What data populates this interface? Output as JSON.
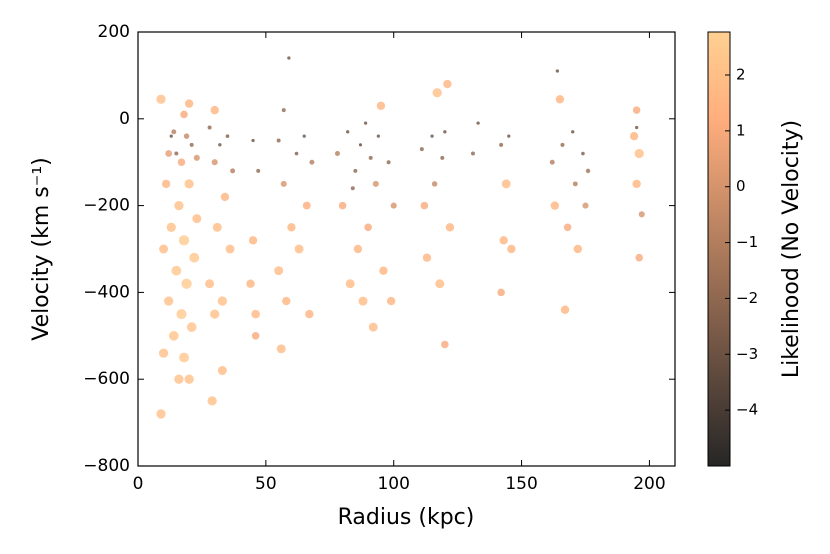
{
  "chart_data": {
    "type": "scatter",
    "xlabel": "Radius (kpc)",
    "ylabel": "Velocity (km s⁻¹)",
    "colorbar_label": "Likelihood (No Velocity)",
    "xlim": [
      0,
      210
    ],
    "ylim": [
      -800,
      200
    ],
    "xticks": [
      0,
      50,
      100,
      150,
      200
    ],
    "yticks": [
      {
        "value": -800,
        "label": "−800"
      },
      {
        "value": -600,
        "label": "−600"
      },
      {
        "value": -400,
        "label": "−400"
      },
      {
        "value": -200,
        "label": "−200"
      },
      0,
      200
    ],
    "clim": [
      -5,
      2.77
    ],
    "cticks": [
      {
        "value": -4,
        "label": "−4"
      },
      {
        "value": -3,
        "label": "−3"
      },
      {
        "value": -2,
        "label": "−2"
      },
      {
        "value": -1,
        "label": "−1"
      },
      0,
      1,
      2
    ],
    "colormap": "copper",
    "x": [
      9,
      9,
      10,
      10,
      11,
      12,
      12,
      13,
      14,
      14,
      15,
      16,
      16,
      17,
      17,
      18,
      18,
      19,
      19,
      20,
      20,
      21,
      21,
      22,
      23,
      23,
      15,
      13,
      20,
      18,
      28,
      28,
      29,
      30,
      30,
      31,
      32,
      33,
      34,
      35,
      36,
      37,
      30,
      33,
      44,
      45,
      45,
      46,
      47,
      46,
      55,
      55,
      56,
      57,
      58,
      59,
      60,
      62,
      63,
      65,
      66,
      67,
      68,
      57,
      78,
      80,
      82,
      83,
      85,
      86,
      87,
      88,
      90,
      91,
      92,
      93,
      94,
      95,
      96,
      98,
      99,
      100,
      89,
      84,
      111,
      112,
      113,
      115,
      116,
      117,
      118,
      119,
      120,
      121,
      122,
      120,
      131,
      133,
      142,
      143,
      144,
      145,
      146,
      142,
      162,
      163,
      165,
      166,
      167,
      168,
      170,
      171,
      172,
      174,
      175,
      176,
      164,
      194,
      195,
      196,
      195,
      196,
      197,
      195
    ],
    "values": [
      45,
      -680,
      -540,
      -300,
      -150,
      -420,
      -80,
      -250,
      -500,
      -30,
      -350,
      -600,
      -200,
      -100,
      -450,
      -280,
      -550,
      -40,
      -380,
      -600,
      -150,
      -60,
      -480,
      -320,
      -230,
      -90,
      -80,
      -40,
      35,
      10,
      -20,
      -380,
      -650,
      -450,
      -100,
      -250,
      -60,
      -420,
      -180,
      -40,
      -300,
      -120,
      20,
      -580,
      -380,
      -280,
      -50,
      -450,
      -120,
      -500,
      -50,
      -350,
      -530,
      -150,
      -420,
      140,
      -250,
      -80,
      -300,
      -40,
      -200,
      -450,
      -100,
      20,
      -80,
      -200,
      -30,
      -380,
      -120,
      -300,
      -60,
      -420,
      -250,
      -90,
      -480,
      -150,
      -40,
      30,
      -350,
      -100,
      -420,
      -200,
      -10,
      -160,
      -70,
      -200,
      -320,
      -40,
      -150,
      60,
      -380,
      -90,
      -520,
      80,
      -250,
      -30,
      -80,
      -10,
      -60,
      -280,
      -150,
      -40,
      -300,
      -400,
      -100,
      -200,
      45,
      -60,
      -440,
      -250,
      -30,
      -150,
      -300,
      -80,
      -200,
      -120,
      110,
      -40,
      20,
      -80,
      -150,
      -320,
      -220,
      -20
    ],
    "likelihood": [
      2,
      2,
      2,
      1.8,
      1.5,
      2,
      0.5,
      2,
      2.2,
      -1,
      2.3,
      2,
      2,
      1,
      2.4,
      2.5,
      2.3,
      -0.5,
      2.5,
      2,
      2,
      -2,
      2.2,
      2.3,
      1.8,
      0,
      -2,
      -3,
      1.5,
      1,
      -2,
      1.8,
      2,
      2,
      0,
      1.8,
      -3,
      2,
      1.5,
      -2.5,
      1.8,
      -1,
      1.5,
      1.8,
      1.5,
      1.5,
      -3,
      1.6,
      -2,
      1,
      -2,
      1.8,
      1.8,
      0,
      1.5,
      -3,
      1.5,
      -2.5,
      1.8,
      -3,
      1.2,
      1.5,
      -1,
      -2,
      -1,
      1,
      -3,
      1.8,
      -2,
      1.5,
      -3.5,
      1.8,
      1,
      -2,
      1.8,
      0,
      -3,
      1.5,
      1.5,
      -2,
      1.5,
      0,
      -3,
      -2,
      -2,
      1,
      1.5,
      -3,
      -0.5,
      2,
      1.8,
      -2,
      1,
      1.5,
      1.5,
      -3,
      -2,
      -3,
      -2,
      1.5,
      1.8,
      -3,
      1.5,
      1,
      -1,
      1.5,
      1.5,
      -2,
      1.5,
      1,
      -3,
      -1,
      1.5,
      -2.5,
      0,
      -1.5,
      -3,
      1.5,
      1,
      2,
      1.5,
      1,
      0,
      -3
    ]
  }
}
